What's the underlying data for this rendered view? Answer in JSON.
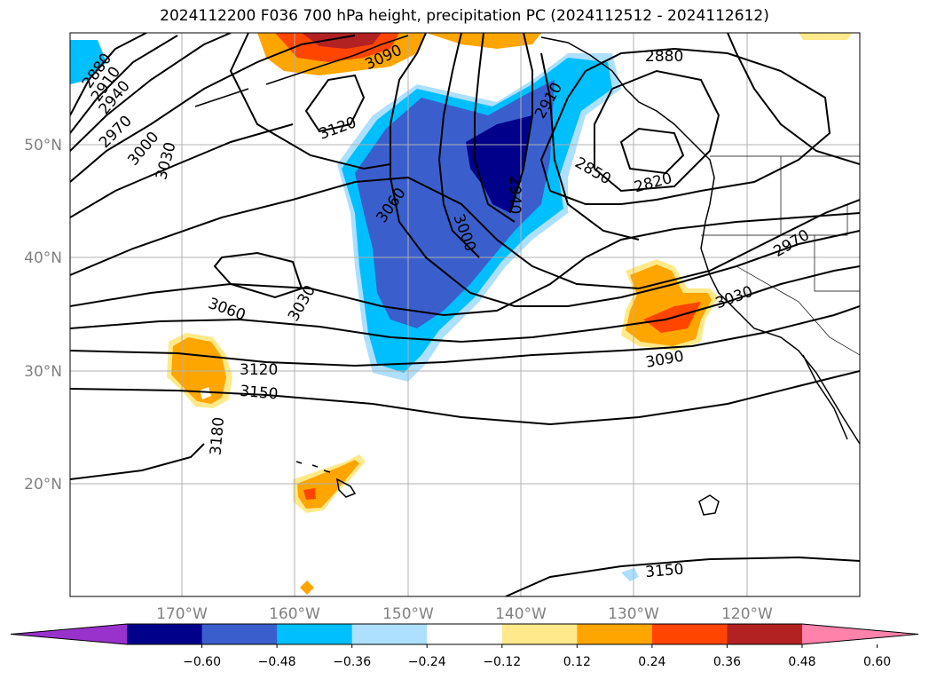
{
  "title": "2024112200 F036 700 hPa height, precipitation PC (2024112512 - 2024112612)",
  "lat_labels": [
    "50°N",
    "40°N",
    "30°N",
    "20°N"
  ],
  "lon_labels": [
    "170°W",
    "160°W",
    "150°W",
    "140°W",
    "130°W",
    "120°W"
  ],
  "contour_labels": [
    "2880",
    "2910",
    "2940",
    "2970",
    "3000",
    "3030",
    "3090",
    "3120",
    "3060",
    "2910",
    "3000",
    "2940",
    "2880",
    "2850",
    "2820",
    "2970",
    "3030",
    "3060",
    "3030",
    "3120",
    "3150",
    "3180",
    "3090",
    "3150"
  ],
  "colorbar": {
    "ticks": [
      "−0.60",
      "−0.48",
      "−0.36",
      "−0.24",
      "−0.12",
      "0.12",
      "0.24",
      "0.36",
      "0.48",
      "0.60"
    ],
    "colors": [
      "#9932CC",
      "#00008B",
      "#3A5FCD",
      "#00BFFF",
      "#ADDFFF",
      "#FFFFFF",
      "#FFE98A",
      "#FFA500",
      "#FF4500",
      "#B22222",
      "#FF82AB"
    ]
  }
}
